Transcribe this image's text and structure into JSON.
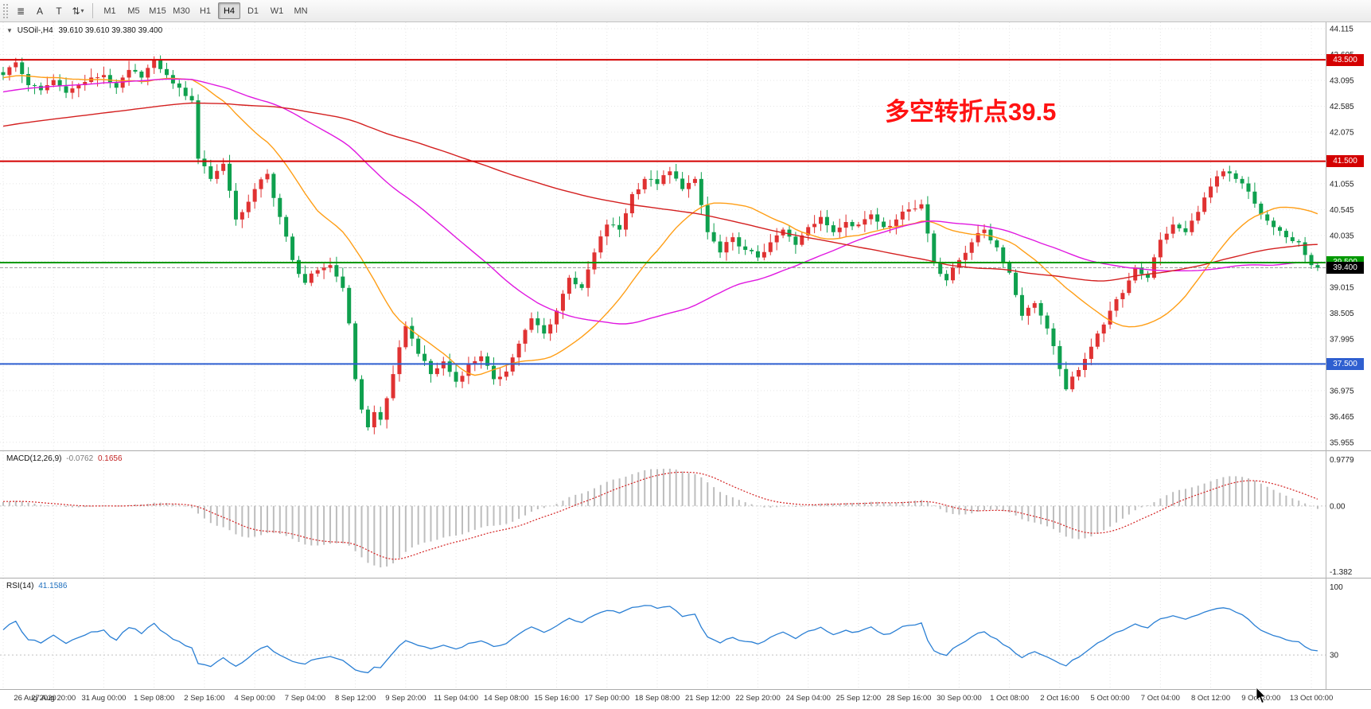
{
  "toolbar": {
    "tools": [
      {
        "name": "charts-list",
        "glyph": "≣"
      },
      {
        "name": "annotate-letter",
        "glyph": "A"
      },
      {
        "name": "text-tool",
        "glyph": "T"
      },
      {
        "name": "scale-mode",
        "glyph": "⇅",
        "caret": "▾"
      }
    ],
    "timeframes": [
      "M1",
      "M5",
      "M15",
      "M30",
      "H1",
      "H4",
      "D1",
      "W1",
      "MN"
    ],
    "active_timeframe": "H4"
  },
  "chart_header": {
    "collapse_glyph": "▼",
    "symbol_label": "USOil-,H4",
    "ohlc_text": "39.610 39.610 39.380 39.400"
  },
  "chart_data": {
    "type": "candlestick",
    "symbol": "USOil-",
    "timeframe": "H4",
    "candle_count": 210,
    "candles_per_label": 8,
    "x_labels": [
      "26 Aug 2020",
      "27 Aug 20:00",
      "31 Aug 00:00",
      "1 Sep 08:00",
      "2 Sep 16:00",
      "4 Sep 00:00",
      "7 Sep 04:00",
      "8 Sep 12:00",
      "9 Sep 20:00",
      "11 Sep 04:00",
      "14 Sep 08:00",
      "15 Sep 16:00",
      "17 Sep 00:00",
      "18 Sep 08:00",
      "21 Sep 12:00",
      "22 Sep 20:00",
      "24 Sep 04:00",
      "25 Sep 12:00",
      "28 Sep 16:00",
      "30 Sep 00:00",
      "1 Oct 08:00",
      "2 Oct 16:00",
      "5 Oct 00:00",
      "7 Oct 04:00",
      "8 Oct 12:00",
      "9 Oct 20:00",
      "13 Oct 00:00"
    ],
    "y_axis": {
      "min": 35.955,
      "max": 44.115,
      "tick_step": 0.51,
      "tick_labels": [
        "44.115",
        "43.605",
        "43.095",
        "42.585",
        "42.075",
        "41.565",
        "41.055",
        "40.545",
        "40.035",
        "39.525",
        "39.015",
        "38.505",
        "37.995",
        "37.485",
        "36.975",
        "36.465",
        "35.955"
      ]
    },
    "close_waypoints": [
      [
        0,
        43.2
      ],
      [
        2,
        43.45
      ],
      [
        4,
        43.0
      ],
      [
        6,
        42.9
      ],
      [
        8,
        43.1
      ],
      [
        10,
        42.85
      ],
      [
        12,
        43.0
      ],
      [
        14,
        43.15
      ],
      [
        16,
        43.2
      ],
      [
        18,
        42.95
      ],
      [
        20,
        43.3
      ],
      [
        22,
        43.15
      ],
      [
        24,
        43.5
      ],
      [
        26,
        43.2
      ],
      [
        28,
        42.95
      ],
      [
        30,
        42.7
      ],
      [
        31,
        41.55
      ],
      [
        32,
        41.4
      ],
      [
        33,
        41.15
      ],
      [
        35,
        41.45
      ],
      [
        37,
        40.35
      ],
      [
        39,
        40.7
      ],
      [
        40,
        40.95
      ],
      [
        42,
        41.25
      ],
      [
        44,
        40.4
      ],
      [
        46,
        39.55
      ],
      [
        48,
        39.1
      ],
      [
        50,
        39.35
      ],
      [
        52,
        39.45
      ],
      [
        54,
        39.0
      ],
      [
        55,
        38.3
      ],
      [
        56,
        37.2
      ],
      [
        57,
        36.6
      ],
      [
        58,
        36.25
      ],
      [
        59,
        36.55
      ],
      [
        60,
        36.4
      ],
      [
        62,
        37.3
      ],
      [
        64,
        38.25
      ],
      [
        66,
        37.7
      ],
      [
        68,
        37.3
      ],
      [
        70,
        37.55
      ],
      [
        72,
        37.15
      ],
      [
        74,
        37.5
      ],
      [
        76,
        37.65
      ],
      [
        78,
        37.2
      ],
      [
        80,
        37.35
      ],
      [
        82,
        37.9
      ],
      [
        84,
        38.4
      ],
      [
        86,
        38.1
      ],
      [
        88,
        38.55
      ],
      [
        90,
        39.2
      ],
      [
        92,
        39.0
      ],
      [
        94,
        39.7
      ],
      [
        96,
        40.25
      ],
      [
        98,
        40.15
      ],
      [
        100,
        40.85
      ],
      [
        102,
        41.15
      ],
      [
        104,
        41.05
      ],
      [
        106,
        41.3
      ],
      [
        108,
        40.95
      ],
      [
        110,
        41.15
      ],
      [
        112,
        40.1
      ],
      [
        114,
        39.7
      ],
      [
        116,
        40.0
      ],
      [
        118,
        39.75
      ],
      [
        120,
        39.6
      ],
      [
        122,
        39.9
      ],
      [
        124,
        40.15
      ],
      [
        126,
        39.85
      ],
      [
        128,
        40.2
      ],
      [
        130,
        40.4
      ],
      [
        132,
        40.1
      ],
      [
        134,
        40.3
      ],
      [
        136,
        40.25
      ],
      [
        138,
        40.45
      ],
      [
        140,
        40.2
      ],
      [
        142,
        40.35
      ],
      [
        144,
        40.55
      ],
      [
        146,
        40.65
      ],
      [
        148,
        39.5
      ],
      [
        150,
        39.15
      ],
      [
        152,
        39.55
      ],
      [
        154,
        39.9
      ],
      [
        156,
        40.15
      ],
      [
        158,
        39.8
      ],
      [
        160,
        39.3
      ],
      [
        162,
        38.45
      ],
      [
        164,
        38.7
      ],
      [
        166,
        38.2
      ],
      [
        168,
        37.4
      ],
      [
        169,
        37.0
      ],
      [
        170,
        37.25
      ],
      [
        172,
        37.6
      ],
      [
        174,
        38.1
      ],
      [
        176,
        38.55
      ],
      [
        178,
        38.9
      ],
      [
        180,
        39.4
      ],
      [
        182,
        39.2
      ],
      [
        184,
        39.95
      ],
      [
        186,
        40.25
      ],
      [
        188,
        40.1
      ],
      [
        190,
        40.5
      ],
      [
        192,
        41.0
      ],
      [
        194,
        41.3
      ],
      [
        196,
        41.15
      ],
      [
        198,
        40.9
      ],
      [
        200,
        40.45
      ],
      [
        202,
        40.2
      ],
      [
        204,
        40.0
      ],
      [
        206,
        39.9
      ],
      [
        207,
        39.65
      ],
      [
        208,
        39.45
      ],
      [
        209,
        39.4
      ]
    ],
    "prehistory_close_waypoints": [
      [
        0,
        40.6
      ],
      [
        20,
        41.2
      ],
      [
        40,
        41.6
      ],
      [
        60,
        41.9
      ],
      [
        80,
        42.4
      ],
      [
        100,
        42.9
      ],
      [
        115,
        43.15
      ],
      [
        129,
        43.2
      ]
    ],
    "colors": {
      "up": "#e03232",
      "down": "#0fa04e"
    },
    "horizontal_lines": [
      {
        "price": 43.5,
        "label": "43.500",
        "color": "#d40000",
        "width": 2
      },
      {
        "price": 41.5,
        "label": "41.500",
        "color": "#d40000",
        "width": 2
      },
      {
        "price": 39.5,
        "label": "39.500",
        "color": "#009900",
        "width": 2
      },
      {
        "price": 37.5,
        "label": "37.500",
        "color": "#2f5fd0",
        "width": 2
      }
    ],
    "current_price": 39.4,
    "current_price_label": "39.400",
    "moving_averages": [
      {
        "period": 20,
        "color": "#ff9e16"
      },
      {
        "period": 55,
        "color": "#e018e0"
      },
      {
        "period": 120,
        "color": "#d42020"
      }
    ],
    "indicators": [
      {
        "type": "MACD",
        "label": "MACD(12,26,9)",
        "fast": 12,
        "slow": 26,
        "signal": 9,
        "values_text": [
          "-0.0762",
          "0.1656"
        ],
        "axis_labels": [
          "0.9779",
          "0.00",
          "-1.382"
        ],
        "axis_max": 0.9779,
        "axis_min": -1.382,
        "histogram_color": "#bdbdbd",
        "signal_color": "#d42222"
      },
      {
        "type": "RSI",
        "label": "RSI(14)",
        "period": 14,
        "value_text": "41.1586",
        "axis_labels": [
          "100",
          "30"
        ],
        "levels": [
          30
        ],
        "color": "#2a7fd4"
      }
    ],
    "annotation": {
      "text": "多空转折点39.5",
      "color": "#ff1212"
    }
  }
}
